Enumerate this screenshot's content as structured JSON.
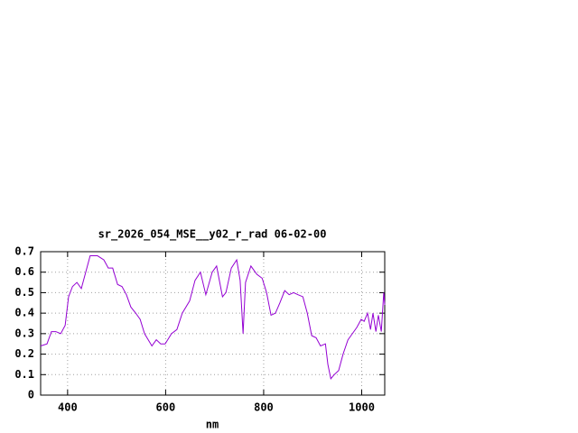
{
  "chart_data": {
    "type": "line",
    "title": "sr_2026_054_MSE__y02_r_rad 06-02-00",
    "x_label": "nm",
    "xlim": [
      345,
      1047
    ],
    "ylim": [
      0,
      0.7
    ],
    "xticks": [
      400,
      600,
      800,
      1000
    ],
    "yticks": [
      0,
      0.1,
      0.2,
      0.3,
      0.4,
      0.5,
      0.6,
      0.7
    ],
    "grid": true,
    "series": [
      {
        "color": "#9400d3",
        "x": [
          345,
          358,
          367,
          376,
          386,
          395,
          402,
          410,
          419,
          428,
          437,
          446,
          461,
          474,
          483,
          492,
          502,
          511,
          520,
          529,
          539,
          548,
          557,
          572,
          581,
          590,
          599,
          612,
          623,
          634,
          649,
          660,
          671,
          682,
          695,
          704,
          716,
          723,
          734,
          745,
          752,
          758,
          763,
          774,
          786,
          797,
          806,
          815,
          824,
          833,
          843,
          852,
          861,
          870,
          880,
          889,
          898,
          907,
          916,
          926,
          931,
          937,
          944,
          953,
          962,
          972,
          981,
          990,
          999,
          1005,
          1012,
          1018,
          1023,
          1029,
          1034,
          1040,
          1045,
          1047
        ],
        "values": [
          0.24,
          0.25,
          0.31,
          0.31,
          0.3,
          0.34,
          0.48,
          0.53,
          0.55,
          0.52,
          0.6,
          0.68,
          0.68,
          0.66,
          0.62,
          0.62,
          0.54,
          0.53,
          0.49,
          0.43,
          0.4,
          0.37,
          0.3,
          0.24,
          0.27,
          0.25,
          0.25,
          0.3,
          0.32,
          0.4,
          0.46,
          0.56,
          0.6,
          0.49,
          0.6,
          0.63,
          0.48,
          0.5,
          0.62,
          0.66,
          0.56,
          0.3,
          0.55,
          0.63,
          0.59,
          0.57,
          0.5,
          0.39,
          0.4,
          0.45,
          0.51,
          0.49,
          0.5,
          0.49,
          0.48,
          0.4,
          0.29,
          0.28,
          0.24,
          0.25,
          0.15,
          0.08,
          0.1,
          0.12,
          0.2,
          0.27,
          0.3,
          0.33,
          0.37,
          0.36,
          0.4,
          0.32,
          0.4,
          0.31,
          0.39,
          0.31,
          0.5,
          0.44
        ]
      }
    ]
  }
}
